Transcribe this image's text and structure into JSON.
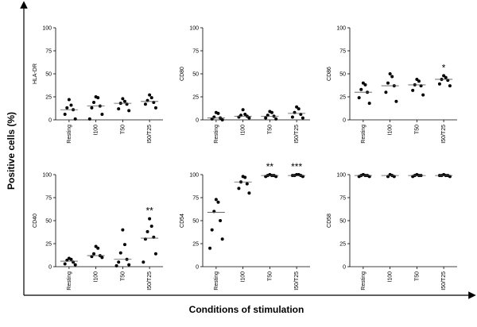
{
  "ylabel": "Positive cells (%)",
  "xlabel": "Conditions of stimulation",
  "chart_data": [
    {
      "type": "dotplot",
      "ylabel": "HLA-DR",
      "categories": [
        "Resting",
        "I100",
        "T50",
        "I50/T25"
      ],
      "points": [
        [
          22,
          16,
          13,
          11,
          6,
          1
        ],
        [
          25,
          24,
          19,
          15,
          13,
          6,
          1
        ],
        [
          23,
          20,
          18,
          17,
          12,
          10
        ],
        [
          27,
          24,
          21,
          19,
          17,
          13
        ]
      ],
      "medians": [
        11,
        15,
        18,
        20
      ],
      "annotations": [
        null,
        null,
        null,
        null
      ],
      "ylim": [
        0,
        100
      ],
      "yticks": [
        0,
        25,
        50,
        75,
        100
      ],
      "color": "#000000"
    },
    {
      "type": "dotplot",
      "ylabel": "CD80",
      "categories": [
        "Resting",
        "I100",
        "T50",
        "I50/T25"
      ],
      "points": [
        [
          8,
          7,
          3,
          2,
          1,
          0
        ],
        [
          11,
          6,
          5,
          4,
          3,
          2
        ],
        [
          9,
          8,
          5,
          4,
          2,
          1
        ],
        [
          14,
          12,
          8,
          6,
          3,
          2
        ]
      ],
      "medians": [
        2,
        4,
        4,
        7
      ],
      "annotations": [
        null,
        null,
        null,
        null
      ],
      "ylim": [
        0,
        100
      ],
      "yticks": [
        0,
        25,
        50,
        75,
        100
      ],
      "color": "#000000"
    },
    {
      "type": "dotplot",
      "ylabel": "CD86",
      "categories": [
        "Resting",
        "I100",
        "T50",
        "I50/T25"
      ],
      "points": [
        [
          40,
          38,
          33,
          30,
          24,
          18
        ],
        [
          50,
          47,
          40,
          37,
          30,
          20
        ],
        [
          44,
          42,
          38,
          37,
          32,
          27
        ],
        [
          48,
          46,
          44,
          43,
          39,
          37
        ]
      ],
      "medians": [
        30,
        37,
        38,
        44
      ],
      "annotations": [
        null,
        null,
        null,
        "*"
      ],
      "ylim": [
        0,
        100
      ],
      "yticks": [
        0,
        25,
        50,
        75,
        100
      ],
      "color": "#000000"
    },
    {
      "type": "dotplot",
      "ylabel": "CD40",
      "categories": [
        "Resting",
        "I100",
        "T50",
        "I50/T25"
      ],
      "points": [
        [
          9,
          8,
          7,
          5,
          3,
          2
        ],
        [
          22,
          20,
          14,
          12,
          11,
          10
        ],
        [
          40,
          24,
          15,
          8,
          5,
          2,
          1
        ],
        [
          52,
          44,
          38,
          32,
          30,
          14,
          5
        ]
      ],
      "medians": [
        6,
        12,
        8,
        31
      ],
      "annotations": [
        null,
        null,
        null,
        "**"
      ],
      "ylim": [
        0,
        100
      ],
      "yticks": [
        0,
        25,
        50,
        75,
        100
      ],
      "color": "#000000"
    },
    {
      "type": "dotplot",
      "ylabel": "CD54",
      "categories": [
        "Resting",
        "I100",
        "T50",
        "I50/T25"
      ],
      "points": [
        [
          73,
          70,
          60,
          50,
          40,
          30,
          20
        ],
        [
          98,
          97,
          92,
          90,
          85,
          80
        ],
        [
          100,
          99,
          99,
          99,
          98,
          98
        ],
        [
          100,
          100,
          99,
          99,
          99,
          98
        ]
      ],
      "medians": [
        59,
        92,
        99,
        99
      ],
      "annotations": [
        null,
        null,
        "**",
        "***"
      ],
      "ylim": [
        0,
        100
      ],
      "yticks": [
        0,
        25,
        50,
        75,
        100
      ],
      "color": "#000000"
    },
    {
      "type": "dotplot",
      "ylabel": "CD58",
      "categories": [
        "Resting",
        "I100",
        "T50",
        "I50/T25"
      ],
      "points": [
        [
          100,
          99,
          99,
          99,
          98,
          98
        ],
        [
          100,
          99,
          98,
          98
        ],
        [
          100,
          99,
          99,
          99,
          98
        ],
        [
          100,
          99,
          99,
          99,
          99,
          98
        ]
      ],
      "medians": [
        99,
        99,
        99,
        99
      ],
      "annotations": [
        null,
        null,
        null,
        null
      ],
      "ylim": [
        0,
        100
      ],
      "yticks": [
        0,
        25,
        50,
        75,
        100
      ],
      "color": "#000000"
    }
  ]
}
